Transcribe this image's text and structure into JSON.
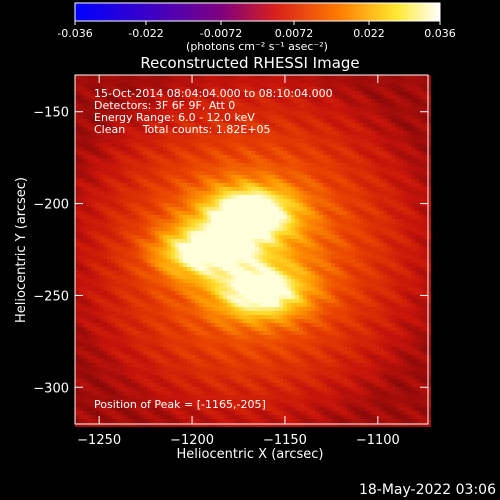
{
  "chart_data": {
    "type": "heatmap",
    "title": "Reconstructed RHESSI Image",
    "xlabel": "Heliocentric X (arcsec)",
    "ylabel": "Heliocentric Y (arcsec)",
    "xlim": [
      -1263,
      -1073
    ],
    "ylim": [
      -320,
      -130
    ],
    "xticks": [
      -1250,
      -1200,
      -1150,
      -1100
    ],
    "yticks": [
      -150,
      -200,
      -250,
      -300
    ],
    "colorbar": {
      "min": -0.036,
      "max": 0.036,
      "ticks": [
        "-0.036",
        "-0.022",
        "-0.0072",
        "0.0072",
        "0.022",
        "0.036"
      ],
      "units": "(photons cm⁻² s⁻¹ asec⁻²)"
    },
    "annotations": [
      "15-Oct-2014 08:04:04.000 to 08:10:04.000",
      "Detectors: 3F 6F 9F, Att 0",
      "Energy Range: 6.0 - 12.0 keV",
      "Clean     Total counts: 1.82E+05"
    ],
    "peak_label": "Position of Peak = [-1165,-205]",
    "sources": [
      {
        "x": -1169,
        "y": -205,
        "amplitude": 0.036
      },
      {
        "x": -1196,
        "y": -226,
        "amplitude": 0.03
      },
      {
        "x": -1162,
        "y": -249,
        "amplitude": 0.031
      }
    ]
  },
  "footer": {
    "date": "18-May-2022 03:06"
  }
}
